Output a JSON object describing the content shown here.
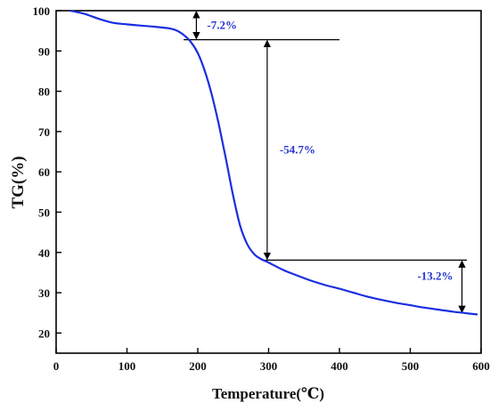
{
  "chart_data": {
    "type": "line",
    "xlabel": "Temperature(℃)",
    "ylabel": "TG(%)",
    "xlim": [
      0,
      600
    ],
    "ylim": [
      15,
      100
    ],
    "x_ticks": [
      0,
      100,
      200,
      300,
      400,
      500,
      600
    ],
    "y_ticks": [
      20,
      30,
      40,
      50,
      60,
      70,
      80,
      90,
      100
    ],
    "grid": false,
    "colors": {
      "curve": "#1a2ee0",
      "axes": "#000000",
      "labels": "#2233cc"
    },
    "series": [
      {
        "x": [
          20,
          40,
          60,
          80,
          100,
          120,
          140,
          160,
          170,
          180,
          190,
          200,
          210,
          220,
          230,
          240,
          250,
          260,
          270,
          280,
          290,
          300,
          320,
          340,
          360,
          380,
          400,
          420,
          440,
          460,
          480,
          500,
          520,
          540,
          560,
          580,
          595
        ],
        "y": [
          100,
          99.2,
          98,
          97,
          96.6,
          96.3,
          96,
          95.6,
          95.1,
          94,
          92.3,
          89.5,
          85,
          79,
          71.5,
          63,
          54,
          46.5,
          42,
          39.5,
          38.3,
          37.5,
          35.7,
          34.3,
          33,
          31.9,
          31,
          30,
          29,
          28.2,
          27.5,
          26.9,
          26.3,
          25.8,
          25.3,
          24.9,
          24.6
        ]
      }
    ],
    "annotations": [
      {
        "label": "-7.2%",
        "from_y": 100,
        "to_y": 92.8,
        "x": 198,
        "ref_line": {
          "y": 92.8,
          "x_from": 180,
          "x_to": 400
        }
      },
      {
        "label": "-54.7%",
        "from_y": 92.8,
        "to_y": 38.1,
        "x": 298,
        "ref_line": {
          "y": 38.1,
          "x_from": 295,
          "x_to": 580
        }
      },
      {
        "label": "-13.2%",
        "from_y": 38.1,
        "to_y": 24.9,
        "x": 573
      }
    ]
  }
}
